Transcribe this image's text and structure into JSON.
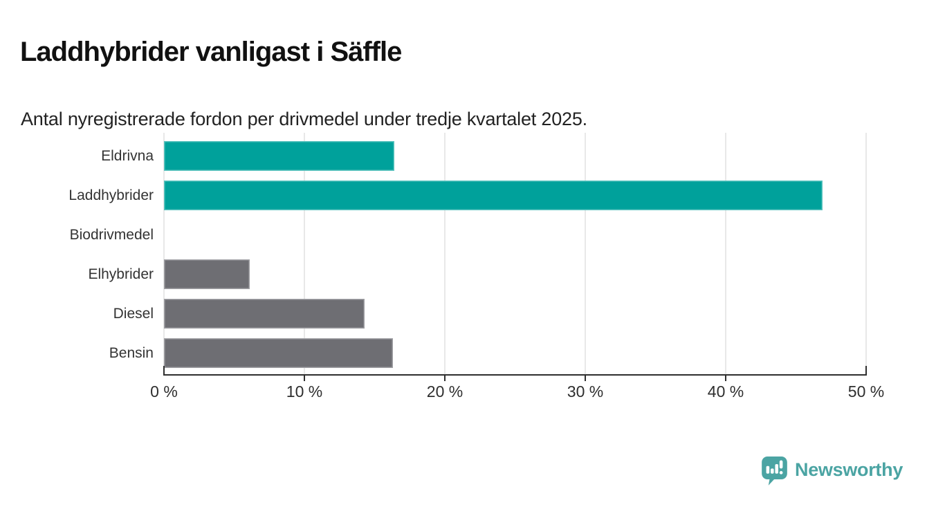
{
  "header": {
    "title": "Laddhybrider vanligast i Säffle",
    "subtitle": "Antal nyregistrerade fordon per drivmedel under tredje kvartalet 2025."
  },
  "chart_data": {
    "type": "bar",
    "orientation": "horizontal",
    "title": "Laddhybrider vanligast i Säffle",
    "subtitle": "Antal nyregistrerade fordon per drivmedel under tredje kvartalet 2025.",
    "categories": [
      "Eldrivna",
      "Laddhybrider",
      "Biodrivmedel",
      "Elhybrider",
      "Diesel",
      "Bensin"
    ],
    "values": [
      16.4,
      46.9,
      0,
      6.1,
      14.3,
      16.3
    ],
    "unit": "%",
    "xlabel": "",
    "ylabel": "",
    "xlim": [
      0,
      50
    ],
    "x_tick_values": [
      0,
      10,
      20,
      30,
      40,
      50
    ],
    "x_tick_labels": [
      "0 %",
      "10 %",
      "20 %",
      "30 %",
      "40 %",
      "50 %"
    ],
    "grid": true,
    "legend": false,
    "highlight_color": "#00a19b",
    "default_color": "#6e6e73",
    "bar_colors": [
      "#00a19b",
      "#00a19b",
      "#6e6e73",
      "#6e6e73",
      "#6e6e73",
      "#6e6e73"
    ]
  },
  "colors": {
    "axis": "#2e2e2e",
    "gridline": "#e8e8e8",
    "title_text": "#111111",
    "logo_teal": "#4ba4a3"
  },
  "footer": {
    "brand": "Newsworthy"
  }
}
